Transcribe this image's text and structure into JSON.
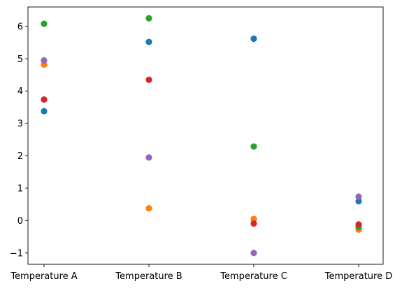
{
  "chart_data": {
    "type": "scatter",
    "title": "",
    "xlabel": "",
    "ylabel": "",
    "categories": [
      "Temperature A",
      "Temperature B",
      "Temperature C",
      "Temperature D"
    ],
    "ylim": [
      -1.35,
      6.6
    ],
    "yticks": [
      -1,
      0,
      1,
      2,
      3,
      4,
      5,
      6
    ],
    "grid": false,
    "legend": "none",
    "series": [
      {
        "color": "#1f77b4",
        "values": [
          3.38,
          5.52,
          5.62,
          0.6
        ]
      },
      {
        "color": "#ff7f0e",
        "values": [
          4.82,
          0.38,
          0.05,
          -0.28
        ]
      },
      {
        "color": "#2ca02c",
        "values": [
          6.08,
          6.25,
          2.29,
          -0.2
        ]
      },
      {
        "color": "#d62728",
        "values": [
          3.74,
          4.35,
          -0.09,
          -0.12
        ]
      },
      {
        "color": "#9467bd",
        "values": [
          4.95,
          1.95,
          -1.0,
          0.74
        ]
      }
    ]
  }
}
